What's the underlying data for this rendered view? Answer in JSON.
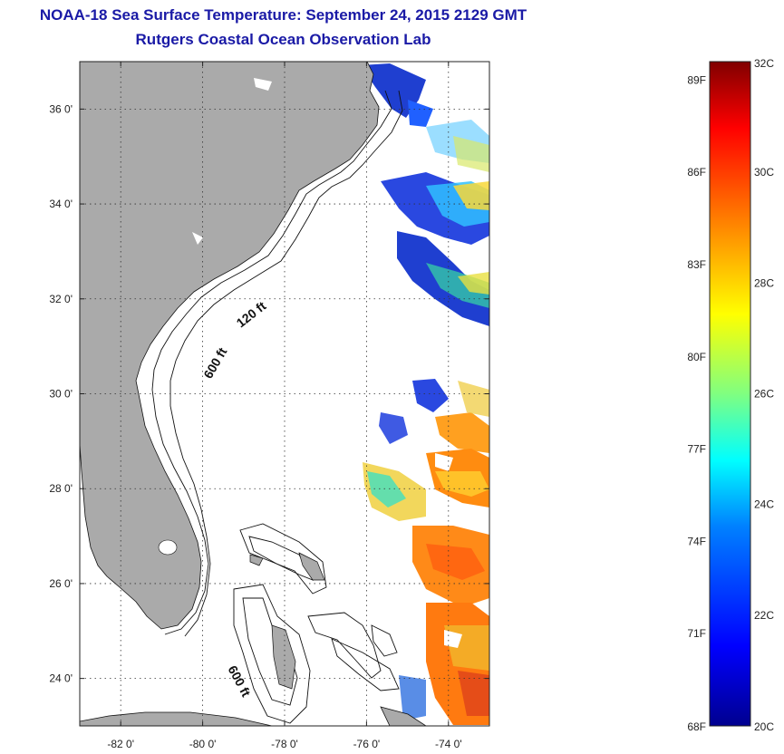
{
  "title": {
    "line1": "NOAA-18 Sea Surface Temperature:  September 24, 2015 2129 GMT",
    "line2": "Rutgers Coastal Ocean Observation Lab"
  },
  "map": {
    "lon_range": [
      -83,
      -73
    ],
    "lat_range": [
      23,
      37
    ],
    "lat_ticks": [
      {
        "value": 36,
        "label": "36 0'"
      },
      {
        "value": 34,
        "label": "34 0'"
      },
      {
        "value": 32,
        "label": "32 0'"
      },
      {
        "value": 30,
        "label": "30 0'"
      },
      {
        "value": 28,
        "label": "28 0'"
      },
      {
        "value": 26,
        "label": "26 0'"
      },
      {
        "value": 24,
        "label": "24 0'"
      }
    ],
    "lon_ticks": [
      {
        "value": -82,
        "label": "-82 0'"
      },
      {
        "value": -80,
        "label": "-80 0'"
      },
      {
        "value": -78,
        "label": "-78 0'"
      },
      {
        "value": -76,
        "label": "-76 0'"
      },
      {
        "value": -74,
        "label": "-74 0'"
      }
    ],
    "grid": "dotted",
    "land_color": "#aaaaaa",
    "contour_labels": [
      {
        "text": "120 ft",
        "lon": -78.75,
        "lat": 31.6,
        "rotate": -38
      },
      {
        "text": "600 ft",
        "lon": -79.6,
        "lat": 30.6,
        "rotate": -60
      },
      {
        "text": "600 ft",
        "lon": -79.2,
        "lat": 23.9,
        "rotate": 62
      }
    ]
  },
  "colorbar": {
    "range_c": [
      20,
      32
    ],
    "celsius_labels": [
      {
        "value": 32,
        "label": "32C"
      },
      {
        "value": 30,
        "label": "30C"
      },
      {
        "value": 28,
        "label": "28C"
      },
      {
        "value": 26,
        "label": "26C"
      },
      {
        "value": 24,
        "label": "24C"
      },
      {
        "value": 22,
        "label": "22C"
      },
      {
        "value": 20,
        "label": "20C"
      }
    ],
    "fahrenheit_labels": [
      {
        "value": 89,
        "label": "89F"
      },
      {
        "value": 86,
        "label": "86F"
      },
      {
        "value": 83,
        "label": "83F"
      },
      {
        "value": 80,
        "label": "80F"
      },
      {
        "value": 77,
        "label": "77F"
      },
      {
        "value": 74,
        "label": "74F"
      },
      {
        "value": 71,
        "label": "71F"
      },
      {
        "value": 68,
        "label": "68F"
      }
    ],
    "colors": [
      "#00008f",
      "#0000ff",
      "#0080ff",
      "#00ffff",
      "#80ff80",
      "#ffff00",
      "#ff8000",
      "#ff0000",
      "#800000"
    ]
  }
}
